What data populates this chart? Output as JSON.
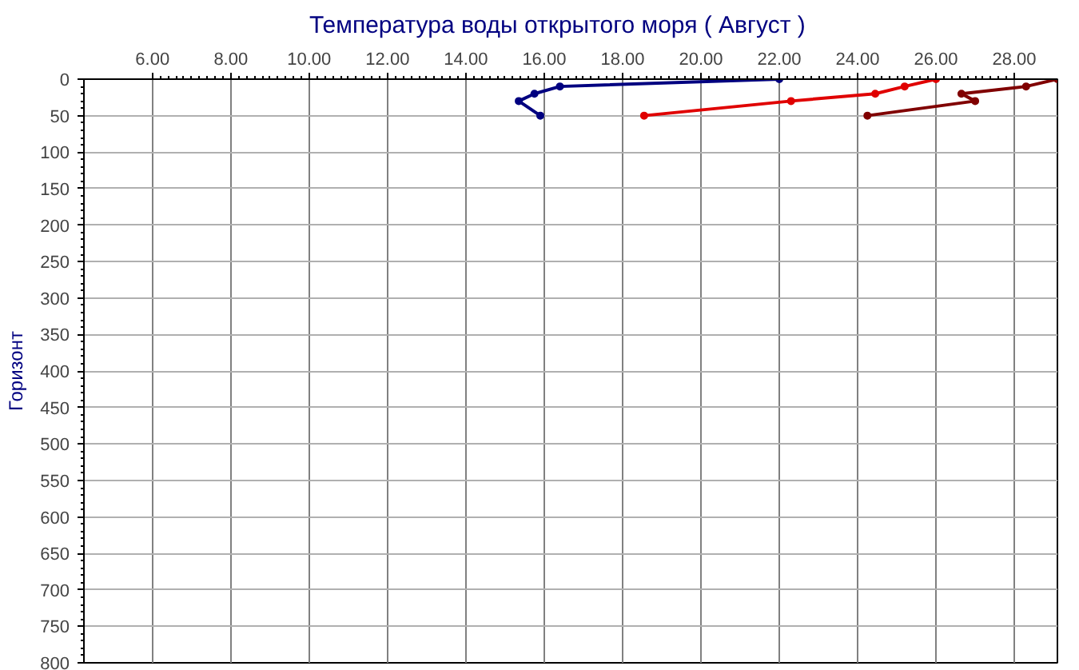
{
  "chart_data": {
    "type": "line",
    "title": "Температура воды открытого моря     ( Август )",
    "ylabel": "Горизонт",
    "xlim": [
      4.25,
      29.1
    ],
    "xticks": [
      {
        "value": 6,
        "label": "6.00"
      },
      {
        "value": 8,
        "label": "8.00"
      },
      {
        "value": 10,
        "label": "10.00"
      },
      {
        "value": 12,
        "label": "12.00"
      },
      {
        "value": 14,
        "label": "14.00"
      },
      {
        "value": 16,
        "label": "16.00"
      },
      {
        "value": 18,
        "label": "18.00"
      },
      {
        "value": 20,
        "label": "20.00"
      },
      {
        "value": 22,
        "label": "22.00"
      },
      {
        "value": 24,
        "label": "24.00"
      },
      {
        "value": 26,
        "label": "26.00"
      },
      {
        "value": 28,
        "label": "28.00"
      }
    ],
    "ylim": [
      800,
      0
    ],
    "yticks": [
      0,
      50,
      100,
      150,
      200,
      250,
      300,
      350,
      400,
      450,
      500,
      550,
      600,
      650,
      700,
      750,
      800
    ],
    "grid": true,
    "marker": "circle",
    "line_style": "solid",
    "series": [
      {
        "color": "#000080",
        "x": [
          22.0,
          16.4,
          15.75,
          15.35,
          15.9
        ],
        "values": [
          0,
          10,
          20,
          30,
          50
        ]
      },
      {
        "color": "#e00000",
        "x": [
          26.0,
          25.2,
          24.45,
          22.3,
          18.55
        ],
        "values": [
          0,
          10,
          20,
          30,
          50
        ]
      },
      {
        "color": "#800000",
        "x": [
          29.1,
          28.3,
          26.65,
          27.0,
          24.25
        ],
        "values": [
          0,
          10,
          20,
          30,
          50
        ]
      }
    ]
  }
}
